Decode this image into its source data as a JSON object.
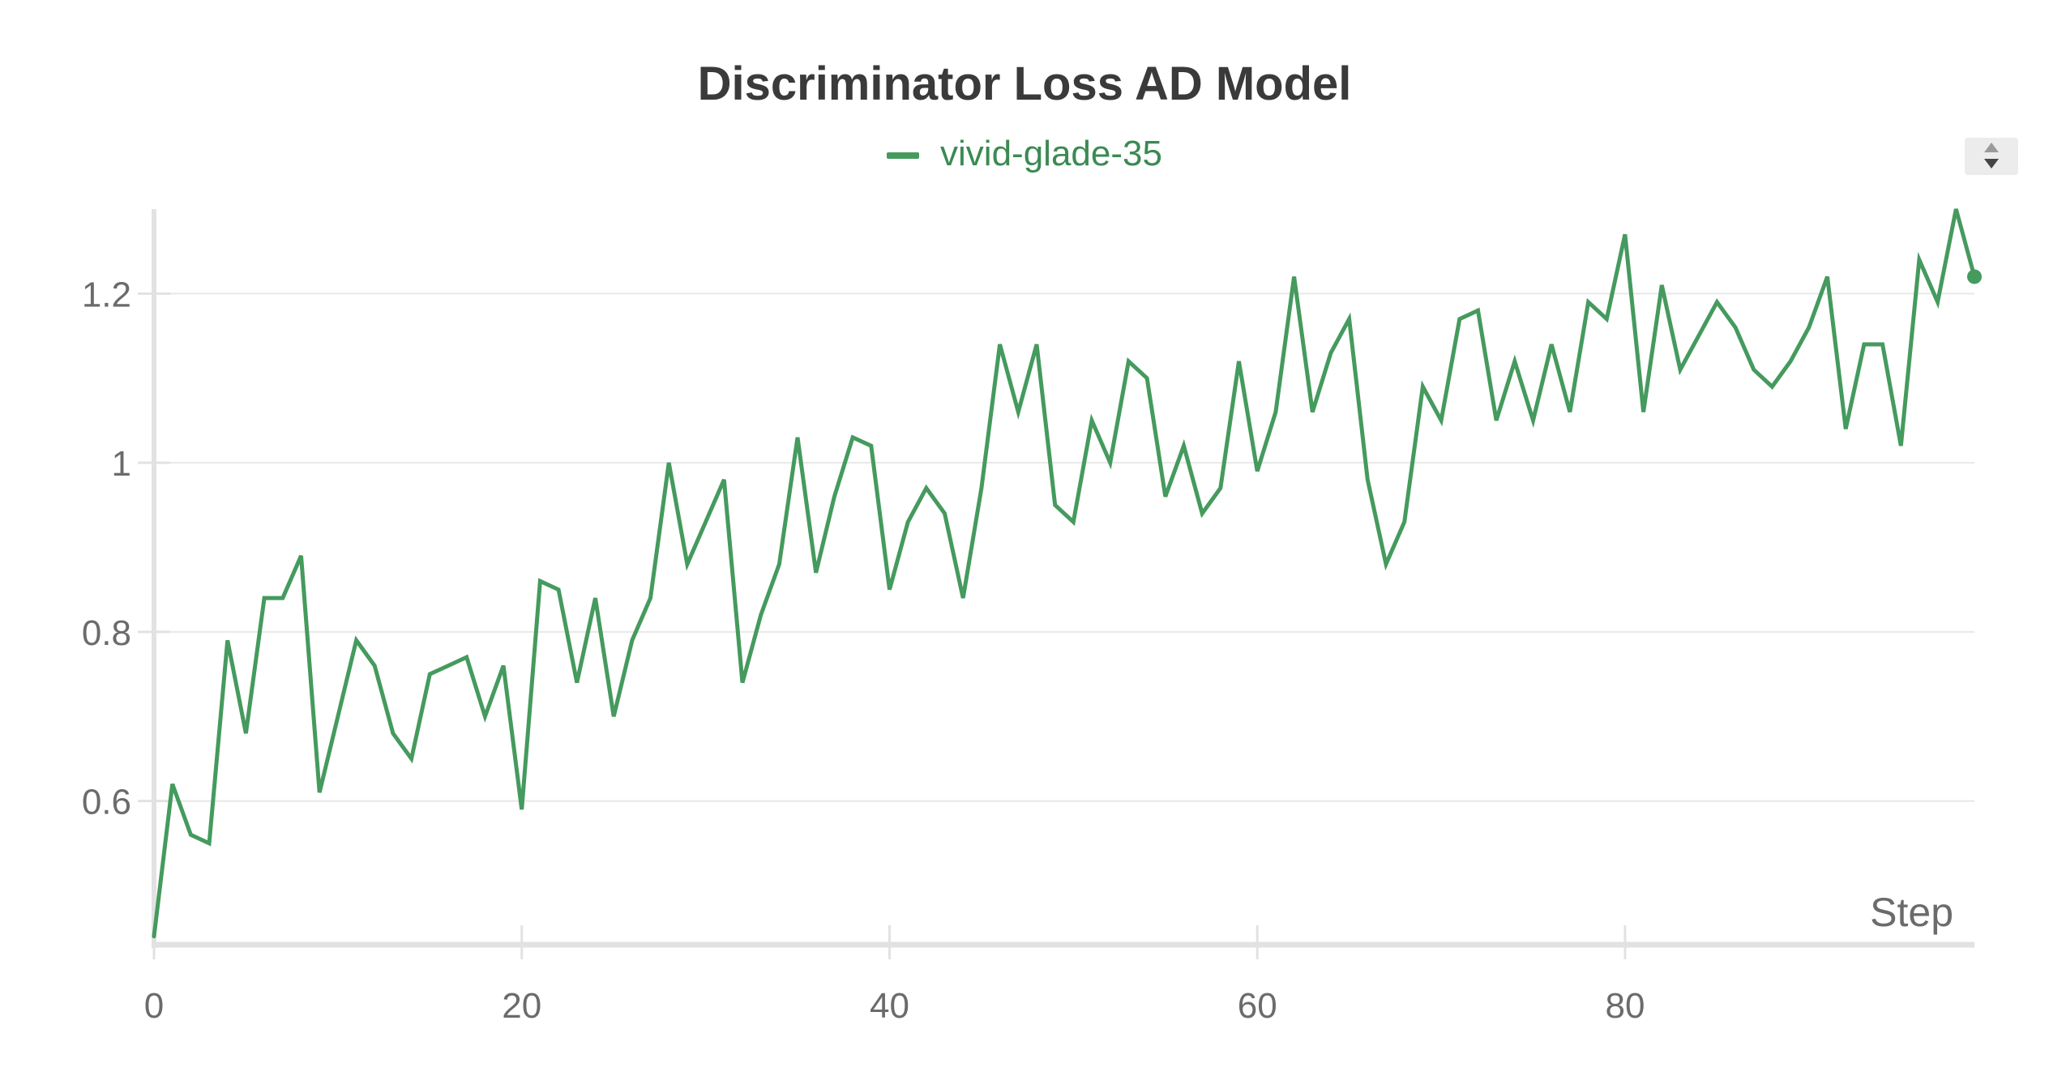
{
  "chart_data": {
    "type": "line",
    "title": "Discriminator Loss AD Model",
    "xlabel": "Step",
    "ylabel": "",
    "xlim": [
      0,
      99
    ],
    "ylim": [
      0.43,
      1.3
    ],
    "xticks": [
      0,
      20,
      40,
      60,
      80
    ],
    "xtick_labels": [
      "0",
      "20",
      "40",
      "60",
      "80"
    ],
    "yticks": [
      0.6,
      0.8,
      1.0,
      1.2
    ],
    "ytick_labels": [
      "0.6",
      "0.8",
      "1",
      "1.2"
    ],
    "grid": true,
    "legend_position": "top-center",
    "series": [
      {
        "name": "vivid-glade-35",
        "color": "#459a5e",
        "x": [
          0,
          1,
          2,
          3,
          4,
          5,
          6,
          7,
          8,
          9,
          10,
          11,
          12,
          13,
          14,
          15,
          16,
          17,
          18,
          19,
          20,
          21,
          22,
          23,
          24,
          25,
          26,
          27,
          28,
          29,
          30,
          31,
          32,
          33,
          34,
          35,
          36,
          37,
          38,
          39,
          40,
          41,
          42,
          43,
          44,
          45,
          46,
          47,
          48,
          49,
          50,
          51,
          52,
          53,
          54,
          55,
          56,
          57,
          58,
          59,
          60,
          61,
          62,
          63,
          64,
          65,
          66,
          67,
          68,
          69,
          70,
          71,
          72,
          73,
          74,
          75,
          76,
          77,
          78,
          79,
          80,
          81,
          82,
          83,
          84,
          85,
          86,
          87,
          88,
          89,
          90,
          91,
          92,
          93,
          94,
          95,
          96,
          97,
          98,
          99
        ],
        "y": [
          0.44,
          0.62,
          0.56,
          0.55,
          0.79,
          0.68,
          0.84,
          0.84,
          0.89,
          0.61,
          0.7,
          0.79,
          0.76,
          0.68,
          0.65,
          0.75,
          0.76,
          0.77,
          0.7,
          0.76,
          0.59,
          0.86,
          0.85,
          0.74,
          0.84,
          0.7,
          0.79,
          0.84,
          1.0,
          0.88,
          0.93,
          0.98,
          0.74,
          0.82,
          0.88,
          1.03,
          0.87,
          0.96,
          1.03,
          1.02,
          0.85,
          0.93,
          0.97,
          0.94,
          0.84,
          0.97,
          1.14,
          1.06,
          1.14,
          0.95,
          0.93,
          1.05,
          1.0,
          1.12,
          1.1,
          0.96,
          1.02,
          0.94,
          0.97,
          1.12,
          0.99,
          1.06,
          1.22,
          1.06,
          1.13,
          1.17,
          0.98,
          0.88,
          0.93,
          1.09,
          1.05,
          1.17,
          1.18,
          1.05,
          1.12,
          1.05,
          1.14,
          1.06,
          1.19,
          1.17,
          1.27,
          1.06,
          1.21,
          1.11,
          1.15,
          1.19,
          1.16,
          1.11,
          1.09,
          1.12,
          1.16,
          1.22,
          1.04,
          1.14,
          1.14,
          1.02,
          1.24,
          1.19,
          1.3,
          1.22
        ]
      }
    ]
  }
}
